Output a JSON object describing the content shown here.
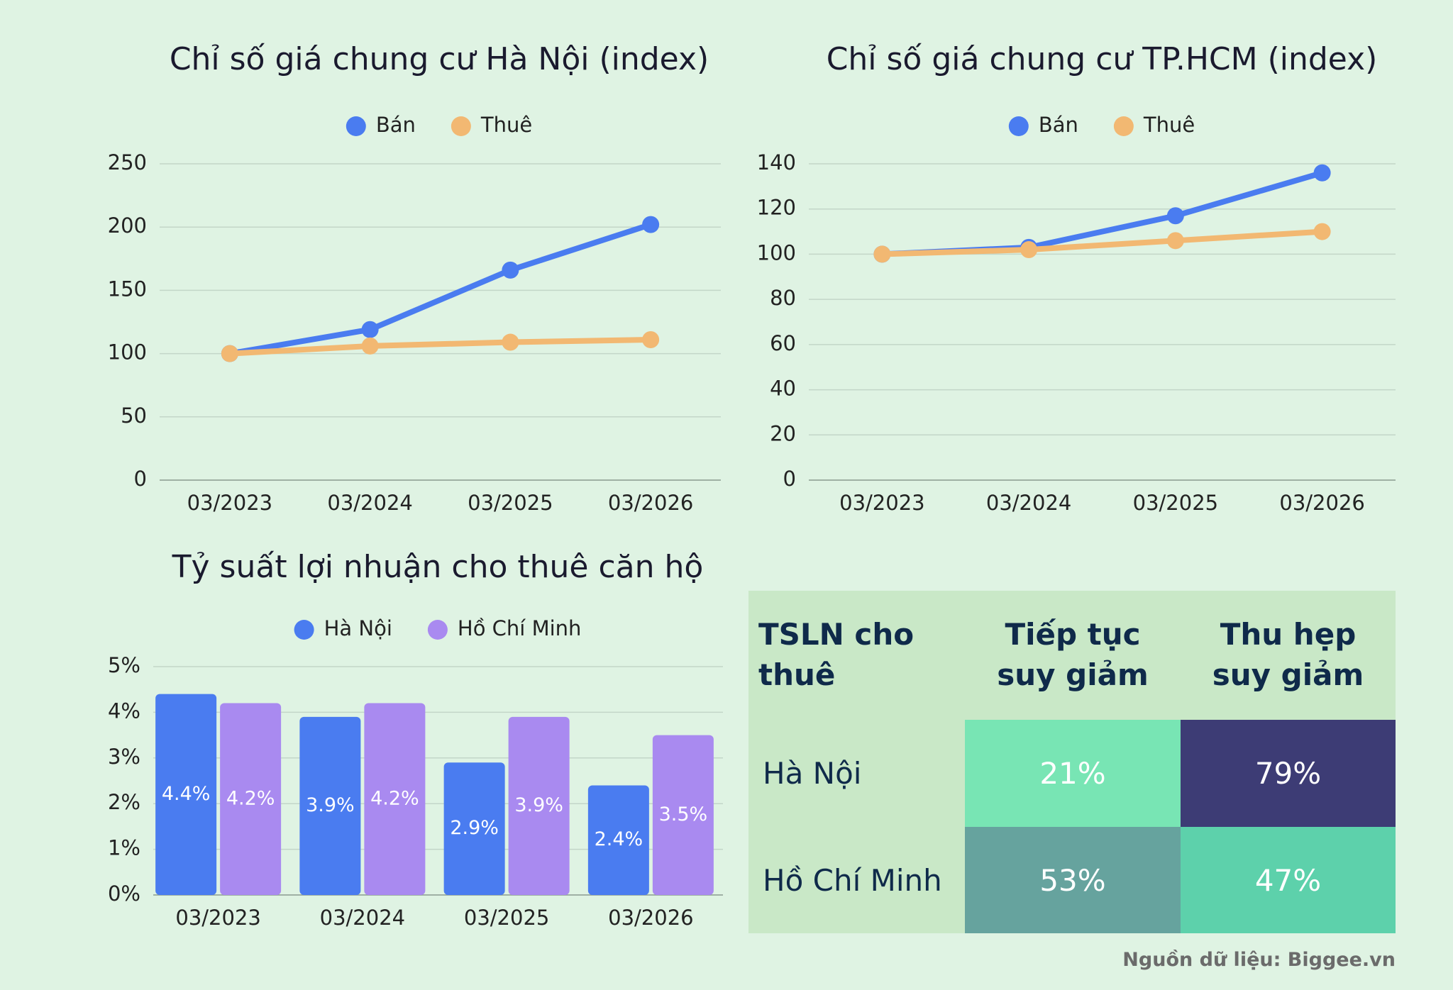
{
  "chart_data": [
    {
      "type": "line",
      "title": "Chỉ số giá chung cư Hà Nội (index)",
      "categories": [
        "03/2023",
        "03/2024",
        "03/2025",
        "03/2026"
      ],
      "series": [
        {
          "name": "Bán",
          "color": "#4a7cf0",
          "values": [
            100,
            119,
            166,
            202
          ]
        },
        {
          "name": "Thuê",
          "color": "#f2b872",
          "values": [
            100,
            106,
            109,
            111
          ]
        }
      ],
      "ylim": [
        0,
        250
      ],
      "yticks": [
        0,
        50,
        100,
        150,
        200,
        250
      ],
      "grid": true,
      "legend": "top"
    },
    {
      "type": "line",
      "title": "Chỉ số giá chung cư TP.HCM (index)",
      "categories": [
        "03/2023",
        "03/2024",
        "03/2025",
        "03/2026"
      ],
      "series": [
        {
          "name": "Bán",
          "color": "#4a7cf0",
          "values": [
            100,
            103,
            117,
            136
          ]
        },
        {
          "name": "Thuê",
          "color": "#f2b872",
          "values": [
            100,
            102,
            106,
            110
          ]
        }
      ],
      "ylim": [
        0,
        140
      ],
      "yticks": [
        0,
        20,
        40,
        60,
        80,
        100,
        120,
        140
      ],
      "grid": true,
      "legend": "top"
    },
    {
      "type": "bar",
      "title": "Tỷ suất lợi nhuận cho thuê căn hộ",
      "categories": [
        "03/2023",
        "03/2024",
        "03/2025",
        "03/2026"
      ],
      "series": [
        {
          "name": "Hà Nội",
          "color": "#4a7cf0",
          "values": [
            4.4,
            3.9,
            2.9,
            2.4
          ],
          "value_labels": [
            "4.4%",
            "3.9%",
            "2.9%",
            "2.4%"
          ]
        },
        {
          "name": "Hồ Chí Minh",
          "color": "#a98af0",
          "values": [
            4.2,
            4.2,
            3.9,
            3.5
          ],
          "value_labels": [
            "4.2%",
            "4.2%",
            "3.9%",
            "3.5%"
          ]
        }
      ],
      "ylim": [
        0,
        5
      ],
      "yticks": [
        {
          "value": 0,
          "label": "0%"
        },
        {
          "value": 1,
          "label": "1%"
        },
        {
          "value": 2,
          "label": "2%"
        },
        {
          "value": 3,
          "label": "3%"
        },
        {
          "value": 4,
          "label": "4%"
        },
        {
          "value": 5,
          "label": "5%"
        }
      ],
      "grid": true,
      "legend": "top"
    }
  ],
  "table": {
    "header": [
      "TSLN cho thuê",
      "Tiếp tục suy giảm",
      "Thu hẹp suy giảm"
    ],
    "rows": [
      [
        "Hà Nội",
        "21%",
        "79%"
      ],
      [
        "Hồ Chí Minh",
        "53%",
        "47%"
      ]
    ]
  },
  "source": "Nguồn dữ liệu: Biggee.vn"
}
